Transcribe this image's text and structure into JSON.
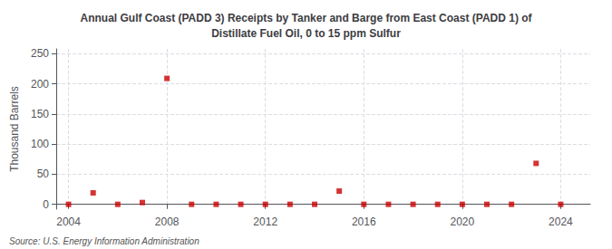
{
  "chart_data": {
    "type": "scatter",
    "title": "Annual Gulf Coast (PADD 3) Receipts by Tanker and Barge from East Coast (PADD 1) of",
    "subtitle": "Distillate Fuel Oil, 0 to 15 ppm Sulfur",
    "ylabel": "Thousand Barrels",
    "annotations": [
      "Source: U.S. Energy Information Administration"
    ],
    "x": [
      2004,
      2005,
      2006,
      2007,
      2008,
      2009,
      2010,
      2011,
      2012,
      2013,
      2014,
      2015,
      2016,
      2017,
      2018,
      2019,
      2020,
      2021,
      2022,
      2023,
      2024
    ],
    "values": [
      0,
      19,
      0,
      3,
      209,
      0,
      0,
      0,
      0,
      0,
      0,
      22,
      0,
      0,
      0,
      0,
      0,
      0,
      0,
      68,
      0
    ],
    "color": "#cc0000",
    "marker": "square",
    "xlim": [
      2003.5,
      2025.2
    ],
    "ylim": [
      -8,
      258
    ],
    "xticks": [
      2004,
      2008,
      2012,
      2016,
      2020,
      2024
    ],
    "yticks": [
      0,
      50,
      100,
      150,
      200,
      250
    ],
    "grid": true
  }
}
